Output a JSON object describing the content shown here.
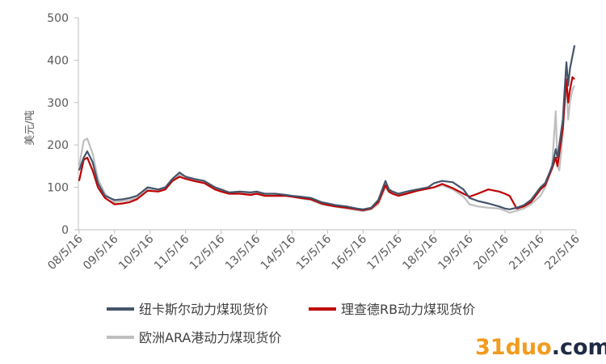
{
  "chart_data": {
    "type": "line",
    "ylabel": "美元/吨",
    "ylim": [
      0,
      500
    ],
    "yticks": [
      "0",
      "100",
      "200",
      "300",
      "400",
      "500"
    ],
    "xlim": [
      2008.35,
      2022.35
    ],
    "xticks": [
      {
        "label": "08/5/16",
        "x": 2008.37
      },
      {
        "label": "09/5/16",
        "x": 2009.37
      },
      {
        "label": "10/5/16",
        "x": 2010.37
      },
      {
        "label": "11/5/16",
        "x": 2011.37
      },
      {
        "label": "12/5/16",
        "x": 2012.37
      },
      {
        "label": "13/5/16",
        "x": 2013.37
      },
      {
        "label": "14/5/16",
        "x": 2014.37
      },
      {
        "label": "15/5/16",
        "x": 2015.37
      },
      {
        "label": "16/5/16",
        "x": 2016.37
      },
      {
        "label": "17/5/16",
        "x": 2017.37
      },
      {
        "label": "18/5/16",
        "x": 2018.37
      },
      {
        "label": "19/5/16",
        "x": 2019.37
      },
      {
        "label": "20/5/16",
        "x": 2020.37
      },
      {
        "label": "21/5/16",
        "x": 2021.37
      },
      {
        "label": "22/5/16",
        "x": 2022.37
      }
    ],
    "series": [
      {
        "name": "纽卡斯尔动力煤现货价",
        "color": "#44546A",
        "x": [
          2008.37,
          2008.5,
          2008.6,
          2008.75,
          2008.9,
          2009.1,
          2009.37,
          2009.6,
          2009.8,
          2010.0,
          2010.3,
          2010.6,
          2010.8,
          2011.0,
          2011.2,
          2011.37,
          2011.6,
          2011.9,
          2012.2,
          2012.37,
          2012.6,
          2012.9,
          2013.2,
          2013.37,
          2013.6,
          2013.9,
          2014.2,
          2014.37,
          2014.6,
          2014.9,
          2015.2,
          2015.37,
          2015.6,
          2015.9,
          2016.2,
          2016.37,
          2016.6,
          2016.8,
          2017.0,
          2017.1,
          2017.2,
          2017.37,
          2017.6,
          2017.9,
          2018.2,
          2018.37,
          2018.6,
          2018.9,
          2019.2,
          2019.37,
          2019.6,
          2019.9,
          2020.2,
          2020.37,
          2020.5,
          2020.7,
          2020.9,
          2021.1,
          2021.37,
          2021.5,
          2021.6,
          2021.7,
          2021.8,
          2021.85,
          2021.9,
          2021.95,
          2022.0,
          2022.05,
          2022.1,
          2022.15,
          2022.2,
          2022.27,
          2022.33
        ],
        "y": [
          140,
          170,
          185,
          160,
          110,
          80,
          70,
          72,
          75,
          80,
          100,
          95,
          100,
          120,
          135,
          125,
          120,
          115,
          100,
          95,
          88,
          90,
          88,
          90,
          85,
          85,
          82,
          80,
          78,
          75,
          65,
          62,
          58,
          55,
          50,
          48,
          52,
          70,
          115,
          95,
          90,
          85,
          90,
          95,
          100,
          110,
          115,
          112,
          95,
          75,
          68,
          62,
          55,
          50,
          48,
          52,
          58,
          70,
          100,
          110,
          130,
          150,
          190,
          170,
          200,
          230,
          260,
          330,
          395,
          340,
          380,
          410,
          435
        ]
      },
      {
        "name": "理查德RB动力煤现货价",
        "color": "#C00000",
        "x": [
          2008.37,
          2008.5,
          2008.6,
          2008.75,
          2008.9,
          2009.1,
          2009.37,
          2009.6,
          2009.8,
          2010.0,
          2010.3,
          2010.6,
          2010.8,
          2011.0,
          2011.2,
          2011.37,
          2011.6,
          2011.9,
          2012.2,
          2012.37,
          2012.6,
          2012.9,
          2013.2,
          2013.37,
          2013.6,
          2013.9,
          2014.2,
          2014.37,
          2014.6,
          2014.9,
          2015.2,
          2015.37,
          2015.6,
          2015.9,
          2016.2,
          2016.37,
          2016.6,
          2016.8,
          2017.0,
          2017.1,
          2017.2,
          2017.37,
          2017.6,
          2017.9,
          2018.2,
          2018.37,
          2018.6,
          2018.9,
          2019.2,
          2019.37,
          2019.6,
          2019.9,
          2020.2,
          2020.37,
          2020.5,
          2020.7,
          2020.9,
          2021.1,
          2021.37,
          2021.5,
          2021.6,
          2021.7,
          2021.8,
          2021.85,
          2021.9,
          2021.95,
          2022.0,
          2022.05,
          2022.1,
          2022.15,
          2022.2,
          2022.27,
          2022.33
        ],
        "y": [
          115,
          165,
          170,
          140,
          100,
          75,
          60,
          62,
          65,
          72,
          92,
          90,
          95,
          115,
          125,
          120,
          115,
          110,
          95,
          90,
          85,
          85,
          82,
          85,
          80,
          80,
          80,
          78,
          75,
          72,
          62,
          58,
          55,
          52,
          48,
          46,
          50,
          65,
          105,
          90,
          85,
          80,
          85,
          92,
          97,
          100,
          108,
          98,
          85,
          78,
          85,
          95,
          90,
          85,
          80,
          50,
          55,
          65,
          95,
          105,
          125,
          145,
          170,
          150,
          180,
          210,
          240,
          300,
          355,
          300,
          330,
          360,
          355
        ]
      },
      {
        "name": "欧洲ARA港动力煤现货价",
        "color": "#BFBFBF",
        "x": [
          2008.37,
          2008.5,
          2008.6,
          2008.75,
          2008.9,
          2009.1,
          2009.37,
          2009.6,
          2009.8,
          2010.0,
          2010.3,
          2010.6,
          2010.8,
          2011.0,
          2011.2,
          2011.37,
          2011.6,
          2011.9,
          2012.2,
          2012.37,
          2012.6,
          2012.9,
          2013.2,
          2013.37,
          2013.6,
          2013.9,
          2014.2,
          2014.37,
          2014.6,
          2014.9,
          2015.2,
          2015.37,
          2015.6,
          2015.9,
          2016.2,
          2016.37,
          2016.6,
          2016.8,
          2017.0,
          2017.1,
          2017.2,
          2017.37,
          2017.6,
          2017.9,
          2018.2,
          2018.37,
          2018.6,
          2018.9,
          2019.2,
          2019.37,
          2019.6,
          2019.9,
          2020.2,
          2020.37,
          2020.5,
          2020.7,
          2020.9,
          2021.1,
          2021.37,
          2021.5,
          2021.6,
          2021.7,
          2021.8,
          2021.85,
          2021.9,
          2021.95,
          2022.0,
          2022.05,
          2022.1,
          2022.15,
          2022.2,
          2022.27,
          2022.33
        ],
        "y": [
          150,
          210,
          215,
          180,
          120,
          85,
          65,
          68,
          70,
          75,
          95,
          92,
          98,
          118,
          130,
          125,
          118,
          112,
          98,
          92,
          86,
          88,
          85,
          88,
          82,
          82,
          80,
          78,
          74,
          70,
          60,
          58,
          54,
          50,
          46,
          44,
          48,
          60,
          100,
          88,
          85,
          82,
          88,
          92,
          98,
          100,
          105,
          95,
          78,
          60,
          55,
          52,
          50,
          45,
          40,
          45,
          50,
          60,
          80,
          100,
          125,
          155,
          280,
          150,
          140,
          180,
          230,
          290,
          350,
          260,
          300,
          330,
          340
        ]
      }
    ],
    "legend": {
      "position": "bottom",
      "items": [
        "纽卡斯尔动力煤现货价",
        "理查德RB动力煤现货价",
        "欧洲ARA港动力煤现货价"
      ]
    },
    "watermark": {
      "prefix": "31",
      "name": "duo",
      "suffix": ".com"
    },
    "grid": false
  }
}
